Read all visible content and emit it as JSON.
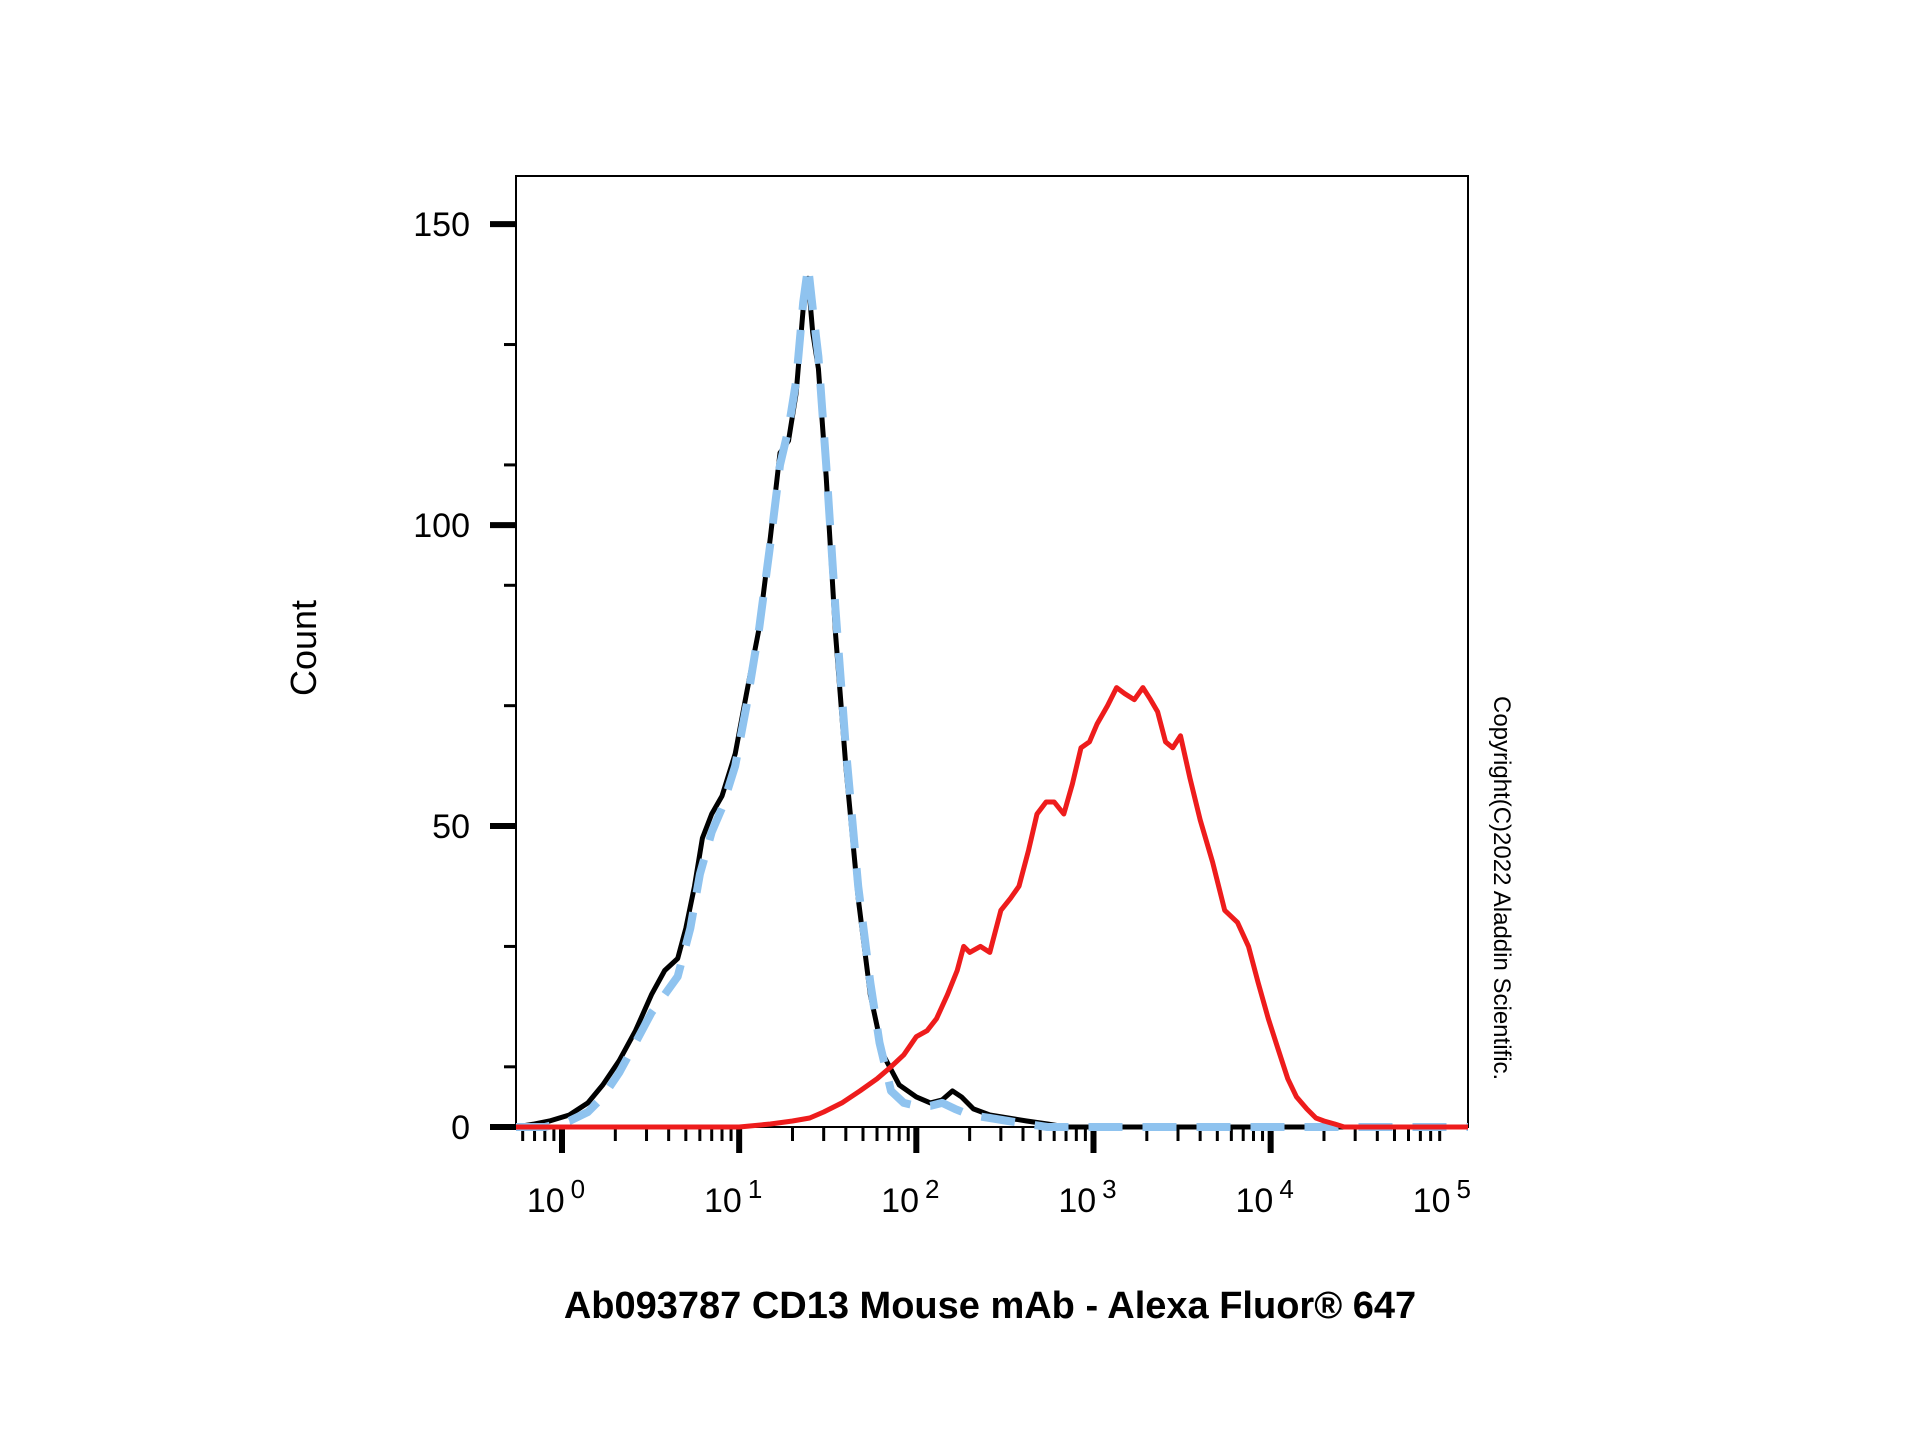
{
  "chart_data": {
    "type": "line",
    "title": "",
    "xlabel": "Ab093787 CD13 Mouse mAb - Alexa Fluor® 647",
    "ylabel": "Count",
    "x_scale": "log",
    "xlim": [
      0.55,
      130000
    ],
    "ylim": [
      0,
      158
    ],
    "y_ticks": [
      {
        "value": 0,
        "label": "0"
      },
      {
        "value": 50,
        "label": "50"
      },
      {
        "value": 100,
        "label": "100"
      },
      {
        "value": 150,
        "label": "150"
      }
    ],
    "x_ticks": [
      {
        "value": 1,
        "base": "10",
        "exp": "0"
      },
      {
        "value": 10,
        "base": "10",
        "exp": "1"
      },
      {
        "value": 100,
        "base": "10",
        "exp": "2"
      },
      {
        "value": 1000,
        "base": "10",
        "exp": "3"
      },
      {
        "value": 10000,
        "base": "10",
        "exp": "4"
      },
      {
        "value": 100000,
        "base": "10",
        "exp": "5"
      }
    ],
    "grid": false,
    "legend": "none",
    "annotation": "Copyright(C)2022 Aladdin Scientific.",
    "series": [
      {
        "color": "#000000",
        "style": "solid",
        "points": [
          [
            0.55,
            0
          ],
          [
            0.7,
            0.5
          ],
          [
            0.85,
            1
          ],
          [
            1.1,
            2
          ],
          [
            1.4,
            4
          ],
          [
            1.7,
            7
          ],
          [
            2.1,
            11
          ],
          [
            2.6,
            16
          ],
          [
            3.2,
            22
          ],
          [
            3.8,
            26
          ],
          [
            4.5,
            28
          ],
          [
            5,
            33
          ],
          [
            5.6,
            40
          ],
          [
            6.2,
            48
          ],
          [
            7,
            52
          ],
          [
            8,
            55
          ],
          [
            9.5,
            62
          ],
          [
            11,
            72
          ],
          [
            13,
            83
          ],
          [
            15,
            98
          ],
          [
            17,
            112
          ],
          [
            19,
            114
          ],
          [
            21,
            122
          ],
          [
            23,
            136
          ],
          [
            24.5,
            141
          ],
          [
            26,
            132
          ],
          [
            28,
            126
          ],
          [
            31,
            108
          ],
          [
            35,
            82
          ],
          [
            40,
            60
          ],
          [
            47,
            38
          ],
          [
            55,
            22
          ],
          [
            65,
            12
          ],
          [
            80,
            7
          ],
          [
            100,
            5
          ],
          [
            120,
            4
          ],
          [
            140,
            4.5
          ],
          [
            160,
            6
          ],
          [
            180,
            5
          ],
          [
            210,
            3
          ],
          [
            260,
            2
          ],
          [
            330,
            1.5
          ],
          [
            420,
            1
          ],
          [
            550,
            0.5
          ],
          [
            700,
            0
          ],
          [
            1000,
            0
          ],
          [
            130000,
            0
          ]
        ]
      },
      {
        "color": "#8fc3ef",
        "style": "dashed",
        "points": [
          [
            0.55,
            0
          ],
          [
            0.8,
            0
          ],
          [
            1.1,
            1
          ],
          [
            1.4,
            2.5
          ],
          [
            1.7,
            5
          ],
          [
            2.1,
            9
          ],
          [
            2.6,
            14
          ],
          [
            3.2,
            19
          ],
          [
            3.8,
            22
          ],
          [
            4.5,
            25
          ],
          [
            5.3,
            33
          ],
          [
            6,
            42
          ],
          [
            7,
            49
          ],
          [
            8,
            53
          ],
          [
            9.5,
            60
          ],
          [
            11,
            70
          ],
          [
            13,
            83
          ],
          [
            15,
            97
          ],
          [
            17,
            110
          ],
          [
            19,
            116
          ],
          [
            21,
            124
          ],
          [
            23,
            137
          ],
          [
            24.5,
            143
          ],
          [
            26,
            136
          ],
          [
            28,
            128
          ],
          [
            31,
            110
          ],
          [
            35,
            86
          ],
          [
            40,
            63
          ],
          [
            47,
            40
          ],
          [
            55,
            24
          ],
          [
            62,
            14
          ],
          [
            72,
            6
          ],
          [
            85,
            4
          ],
          [
            100,
            3.5
          ],
          [
            120,
            3.5
          ],
          [
            140,
            4
          ],
          [
            165,
            3
          ],
          [
            200,
            2
          ],
          [
            260,
            1.5
          ],
          [
            330,
            1
          ],
          [
            420,
            0.5
          ],
          [
            550,
            0
          ],
          [
            1000,
            0
          ],
          [
            130000,
            0
          ]
        ]
      },
      {
        "color": "#ee1c1c",
        "style": "solid",
        "points": [
          [
            0.55,
            0
          ],
          [
            5,
            0
          ],
          [
            10,
            0
          ],
          [
            15,
            0.5
          ],
          [
            20,
            1
          ],
          [
            25,
            1.5
          ],
          [
            30,
            2.5
          ],
          [
            38,
            4
          ],
          [
            48,
            6
          ],
          [
            60,
            8
          ],
          [
            72,
            10
          ],
          [
            85,
            12
          ],
          [
            100,
            15
          ],
          [
            115,
            16
          ],
          [
            130,
            18
          ],
          [
            150,
            22
          ],
          [
            170,
            26
          ],
          [
            185,
            30
          ],
          [
            200,
            29
          ],
          [
            230,
            30
          ],
          [
            260,
            29
          ],
          [
            300,
            36
          ],
          [
            340,
            38
          ],
          [
            380,
            40
          ],
          [
            430,
            46
          ],
          [
            480,
            52
          ],
          [
            540,
            54
          ],
          [
            600,
            54
          ],
          [
            680,
            52
          ],
          [
            760,
            57
          ],
          [
            850,
            63
          ],
          [
            950,
            64
          ],
          [
            1050,
            67
          ],
          [
            1200,
            70
          ],
          [
            1350,
            73
          ],
          [
            1500,
            72
          ],
          [
            1700,
            71
          ],
          [
            1900,
            73
          ],
          [
            2100,
            71
          ],
          [
            2300,
            69
          ],
          [
            2550,
            64
          ],
          [
            2800,
            63
          ],
          [
            3100,
            65
          ],
          [
            3500,
            58
          ],
          [
            4000,
            51
          ],
          [
            4700,
            44
          ],
          [
            5500,
            36
          ],
          [
            6500,
            34
          ],
          [
            7500,
            30
          ],
          [
            8500,
            24
          ],
          [
            9700,
            18
          ],
          [
            11000,
            13
          ],
          [
            12500,
            8
          ],
          [
            14000,
            5
          ],
          [
            16000,
            3
          ],
          [
            18000,
            1.5
          ],
          [
            20000,
            1
          ],
          [
            23000,
            0.5
          ],
          [
            26000,
            0
          ],
          [
            130000,
            0
          ]
        ]
      }
    ]
  }
}
